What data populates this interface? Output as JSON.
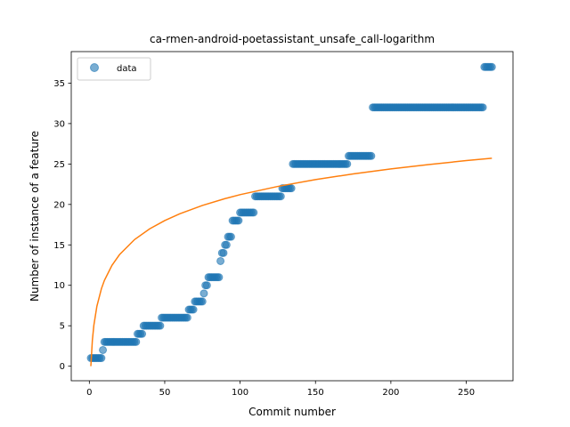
{
  "chart_data": {
    "type": "scatter",
    "title": "ca-rmen-android-poetassistant_unsafe_call-logarithm",
    "xlabel": "Commit number",
    "ylabel": "Number of instance of a feature",
    "xlim": [
      -12,
      281
    ],
    "ylim": [
      -1.8,
      38.9
    ],
    "xticks": [
      0,
      50,
      100,
      150,
      200,
      250
    ],
    "yticks": [
      0,
      5,
      10,
      15,
      20,
      25,
      30,
      35
    ],
    "grid": false,
    "legend": {
      "position": "upper-left",
      "entries": [
        "data"
      ]
    },
    "colors": {
      "points": "#1f77b4",
      "fit": "#ff7f0e"
    },
    "series": [
      {
        "name": "data",
        "kind": "scatter",
        "segments": [
          {
            "x": [
              1,
              8
            ],
            "y": 1
          },
          {
            "x": [
              9,
              9
            ],
            "y": 2
          },
          {
            "x": [
              10,
              31
            ],
            "y": 3
          },
          {
            "x": [
              32,
              35
            ],
            "y": 4
          },
          {
            "x": [
              36,
              47
            ],
            "y": 5
          },
          {
            "x": [
              48,
              65
            ],
            "y": 6
          },
          {
            "x": [
              66,
              69
            ],
            "y": 7
          },
          {
            "x": [
              70,
              75
            ],
            "y": 8
          },
          {
            "x": [
              76,
              76
            ],
            "y": 9
          },
          {
            "x": [
              77,
              78
            ],
            "y": 10
          },
          {
            "x": [
              79,
              86
            ],
            "y": 11
          },
          {
            "x": [
              87,
              87
            ],
            "y": 13
          },
          {
            "x": [
              88,
              89
            ],
            "y": 14
          },
          {
            "x": [
              90,
              91
            ],
            "y": 15
          },
          {
            "x": [
              92,
              94
            ],
            "y": 16
          },
          {
            "x": [
              95,
              99
            ],
            "y": 18
          },
          {
            "x": [
              100,
              109
            ],
            "y": 19
          },
          {
            "x": [
              110,
              127
            ],
            "y": 21
          },
          {
            "x": [
              128,
              134
            ],
            "y": 22
          },
          {
            "x": [
              135,
              171
            ],
            "y": 25
          },
          {
            "x": [
              172,
              187
            ],
            "y": 26
          },
          {
            "x": [
              188,
              261
            ],
            "y": 32
          },
          {
            "x": [
              262,
              267
            ],
            "y": 37
          }
        ]
      },
      {
        "name": "",
        "kind": "line",
        "model": "logarithmic",
        "x": [
          1,
          2,
          3,
          5,
          8,
          10,
          15,
          20,
          30,
          40,
          50,
          60,
          75,
          90,
          100,
          125,
          150,
          175,
          200,
          225,
          250,
          267
        ],
        "y": [
          0.0,
          3.19,
          5.06,
          7.41,
          9.58,
          10.61,
          12.47,
          13.79,
          15.66,
          16.98,
          18.01,
          18.85,
          19.88,
          20.72,
          21.21,
          22.23,
          23.07,
          23.78,
          24.39,
          24.93,
          25.42,
          25.72
        ]
      }
    ]
  }
}
